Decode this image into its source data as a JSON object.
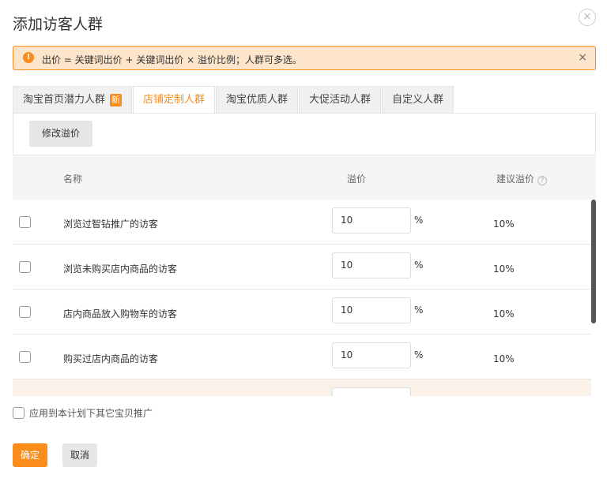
{
  "dialog": {
    "title": "添加访客人群",
    "close_icon": "close-circle-icon"
  },
  "alert": {
    "icon": "exclamation-icon",
    "text": "出价 = 关键词出价 + 关键词出价 × 溢价比例；人群可多选。",
    "close": "×"
  },
  "tabs": [
    {
      "label": "淘宝首页潜力人群",
      "badge": "新"
    },
    {
      "label": "店铺定制人群",
      "active": true
    },
    {
      "label": "淘宝优质人群"
    },
    {
      "label": "大促活动人群"
    },
    {
      "label": "自定义人群"
    }
  ],
  "toolbar": {
    "modify_label": "修改溢价"
  },
  "table": {
    "headers": {
      "name": "名称",
      "premium": "溢价",
      "suggested": "建议溢价",
      "help": "?"
    },
    "rows": [
      {
        "name": "浏览过智钻推广的访客",
        "premium": "10",
        "unit": "%",
        "suggested": "10%"
      },
      {
        "name": "浏览未购买店内商品的访客",
        "premium": "10",
        "unit": "%",
        "suggested": "10%"
      },
      {
        "name": "店内商品放入购物车的访客",
        "premium": "10",
        "unit": "%",
        "suggested": "10%"
      },
      {
        "name": "购买过店内商品的访客",
        "premium": "10",
        "unit": "%",
        "suggested": "10%"
      }
    ]
  },
  "footer": {
    "apply_label": "应用到本计划下其它宝贝推广",
    "ok_label": "确定",
    "cancel_label": "取消"
  },
  "colors": {
    "accent": "#f98c1b",
    "alert_bg": "#fde5cb"
  }
}
